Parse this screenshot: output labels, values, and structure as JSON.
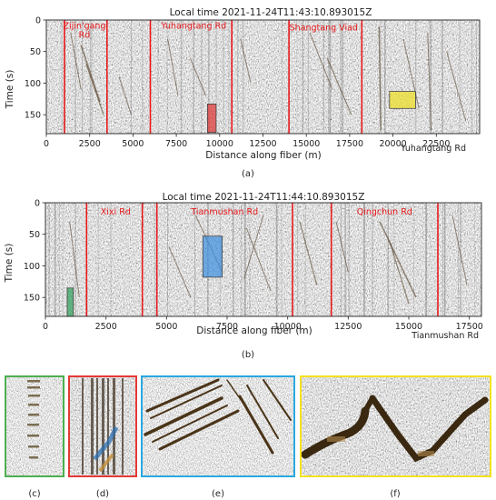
{
  "panels": [
    {
      "id": "a",
      "caption": "(a)",
      "chart_data": {
        "type": "heatmap",
        "title": "Local time 2021-11-24T11:43:10.893015Z",
        "xlabel": "Distance along fiber (m)",
        "ylabel": "Time (s)",
        "xlim": [
          0,
          25000
        ],
        "ylim": [
          180,
          0
        ],
        "x_ticks": [
          "0",
          "2500",
          "5000",
          "7500",
          "10000",
          "12500",
          "15000",
          "17500",
          "20000",
          "22500"
        ],
        "x_tick_values": [
          0,
          2500,
          5000,
          7500,
          10000,
          12500,
          15000,
          17500,
          20000,
          22500
        ],
        "y_ticks": [
          "0",
          "50",
          "100",
          "150"
        ],
        "y_tick_values": [
          0,
          50,
          100,
          150
        ],
        "road_boundaries_m": [
          1050,
          3500,
          6000,
          10700,
          14000,
          18200
        ],
        "road_labels": [
          {
            "text": "Zijin'gang",
            "x": 2200,
            "t": 8
          },
          {
            "text": "Rd",
            "x": 2200,
            "t": 22
          },
          {
            "text": "Yuhangtang  Rd",
            "x": 8500,
            "t": 8
          },
          {
            "text": "Shangtang  Viad",
            "x": 16000,
            "t": 11
          }
        ],
        "corner_label": "Yuhangtang Rd",
        "highlights": [
          {
            "color": "#e03030",
            "x0": 9300,
            "x1": 9800,
            "t0": 133,
            "t1": 178
          },
          {
            "color": "#f0e020",
            "x0": 19800,
            "x1": 21300,
            "t0": 113,
            "t1": 140
          }
        ]
      }
    },
    {
      "id": "b",
      "caption": "(b)",
      "chart_data": {
        "type": "heatmap",
        "title": "Local time 2021-11-24T11:44:10.893015Z",
        "xlabel": "Distance along fiber (m)",
        "ylabel": "Time (s)",
        "xlim": [
          0,
          18000
        ],
        "ylim": [
          180,
          0
        ],
        "x_ticks": [
          "0",
          "2500",
          "5000",
          "7500",
          "10000",
          "12500",
          "15000",
          "17500"
        ],
        "x_tick_values": [
          0,
          2500,
          5000,
          7500,
          10000,
          12500,
          15000,
          17500
        ],
        "y_ticks": [
          "0",
          "50",
          "100",
          "150"
        ],
        "y_tick_values": [
          0,
          50,
          100,
          150
        ],
        "road_boundaries_m": [
          1700,
          4000,
          4600,
          10200,
          11800,
          16200
        ],
        "road_labels": [
          {
            "text": "Xixi  Rd",
            "x": 2900,
            "t": 13
          },
          {
            "text": "Tianmushan  Rd",
            "x": 7400,
            "t": 13
          },
          {
            "text": "Qingchun  Rd",
            "x": 14000,
            "t": 13
          }
        ],
        "corner_label": "Tianmushan Rd",
        "highlights": [
          {
            "color": "#2e9e58",
            "x0": 900,
            "x1": 1150,
            "t0": 135,
            "t1": 180
          },
          {
            "color": "#3b8fe0",
            "x0": 6500,
            "x1": 7300,
            "t0": 53,
            "t1": 118
          }
        ]
      }
    }
  ],
  "zoom_panels": [
    {
      "id": "c",
      "caption": "(c)",
      "border": "#4caf50"
    },
    {
      "id": "d",
      "caption": "(d)",
      "border": "#e53935"
    },
    {
      "id": "e",
      "caption": "(e)",
      "border": "#29a8e0"
    },
    {
      "id": "f",
      "caption": "(f)",
      "border": "#f5e21e"
    }
  ]
}
